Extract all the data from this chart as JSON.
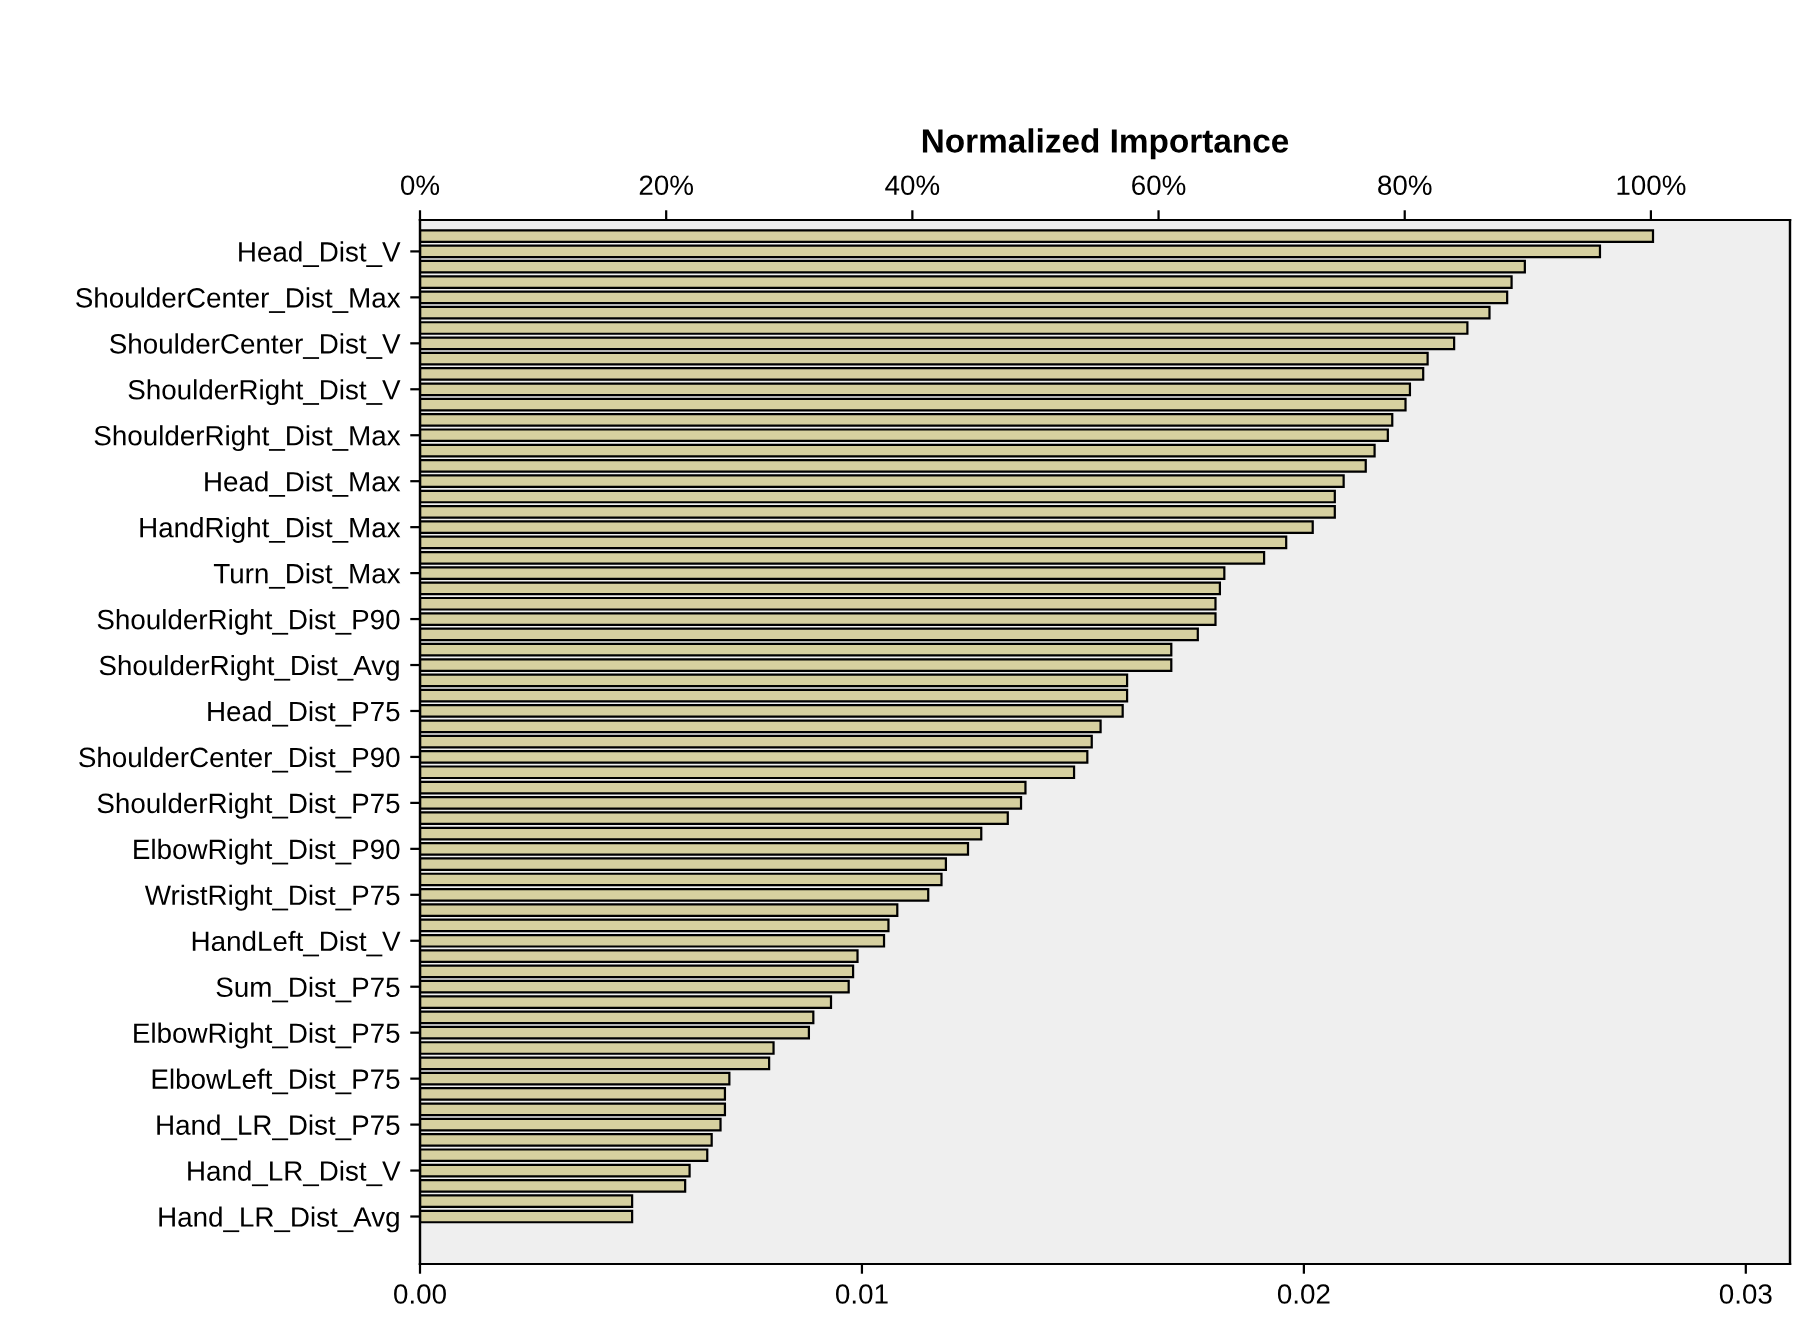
{
  "chart_data": {
    "type": "bar",
    "orientation": "horizontal",
    "x2label": "Normalized Importance",
    "categories": [
      null,
      "Head_Dist_V",
      null,
      null,
      "ShoulderCenter_Dist_Max",
      null,
      null,
      "ShoulderCenter_Dist_V",
      null,
      null,
      "ShoulderRight_Dist_V",
      null,
      null,
      "ShoulderRight_Dist_Max",
      null,
      null,
      "Head_Dist_Max",
      null,
      null,
      "HandRight_Dist_Max",
      null,
      null,
      "Turn_Dist_Max",
      null,
      null,
      "ShoulderRight_Dist_P90",
      null,
      null,
      "ShoulderRight_Dist_Avg",
      null,
      null,
      "Head_Dist_P75",
      null,
      null,
      "ShoulderCenter_Dist_P90",
      null,
      null,
      "ShoulderRight_Dist_P75",
      null,
      null,
      "ElbowRight_Dist_P90",
      null,
      null,
      "WristRight_Dist_P75",
      null,
      null,
      "HandLeft_Dist_V",
      null,
      null,
      "Sum_Dist_P75",
      null,
      null,
      "ElbowRight_Dist_P75",
      null,
      null,
      "ElbowLeft_Dist_P75",
      null,
      null,
      "Hand_LR_Dist_P75",
      null,
      null,
      "Hand_LR_Dist_V",
      null,
      null,
      "Hand_LR_Dist_Avg"
    ],
    "values": [
      0.0279,
      0.0267,
      0.025,
      0.0247,
      0.0246,
      0.0242,
      0.0237,
      0.0234,
      0.0228,
      0.0227,
      0.0224,
      0.0223,
      0.022,
      0.0219,
      0.0216,
      0.0214,
      0.0209,
      0.0207,
      0.0207,
      0.0202,
      0.0196,
      0.0191,
      0.0182,
      0.0181,
      0.018,
      0.018,
      0.0176,
      0.017,
      0.017,
      0.016,
      0.016,
      0.0159,
      0.0154,
      0.0152,
      0.0151,
      0.0148,
      0.0137,
      0.0136,
      0.0133,
      0.0127,
      0.0124,
      0.0119,
      0.0118,
      0.0115,
      0.0108,
      0.0106,
      0.0105,
      0.0099,
      0.0098,
      0.0097,
      0.0093,
      0.0089,
      0.0088,
      0.008,
      0.0079,
      0.007,
      0.0069,
      0.0069,
      0.0068,
      0.0066,
      0.0065,
      0.0061,
      0.006,
      0.0048,
      0.0048
    ],
    "color": "#d6d0a0",
    "xlim": [
      0,
      0.031
    ],
    "xticks": [
      {
        "value": 0,
        "label": "0.00"
      },
      {
        "value": 0.01,
        "label": "0.01"
      },
      {
        "value": 0.02,
        "label": "0.02"
      },
      {
        "value": 0.03,
        "label": "0.03"
      }
    ],
    "x2lim": [
      0,
      111.3
    ],
    "x2ticks": [
      {
        "value": 0,
        "label": "0%"
      },
      {
        "value": 20,
        "label": "20%"
      },
      {
        "value": 40,
        "label": "40%"
      },
      {
        "value": 60,
        "label": "60%"
      },
      {
        "value": 80,
        "label": "80%"
      },
      {
        "value": 100,
        "label": "100%"
      }
    ],
    "grid": false,
    "legend": false
  }
}
